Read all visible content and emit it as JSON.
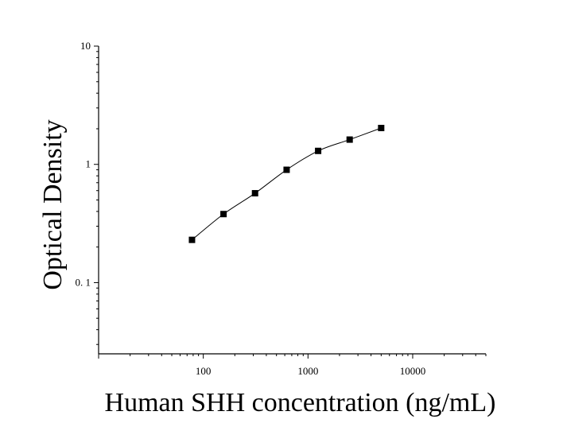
{
  "chart_data": {
    "type": "scatter",
    "xscale": "log",
    "yscale": "log",
    "xlim": [
      10,
      50000
    ],
    "ylim": [
      0.025,
      10
    ],
    "xlabel": "Human SHH concentration (ng/mL)",
    "ylabel": "Optical Density",
    "xticks": [
      {
        "value": 100,
        "label": "100"
      },
      {
        "value": 1000,
        "label": "1000"
      },
      {
        "value": 10000,
        "label": "10000"
      }
    ],
    "yticks": [
      {
        "value": 0.1,
        "label": "0. 1"
      },
      {
        "value": 1,
        "label": "1"
      },
      {
        "value": 10,
        "label": "10"
      }
    ],
    "grid": false,
    "fit_line": true,
    "marker": "square",
    "series": [
      {
        "x": [
          78,
          156,
          312,
          625,
          1250,
          2500,
          5000
        ],
        "y": [
          0.23,
          0.38,
          0.57,
          0.9,
          1.3,
          1.62,
          2.03
        ]
      }
    ]
  }
}
